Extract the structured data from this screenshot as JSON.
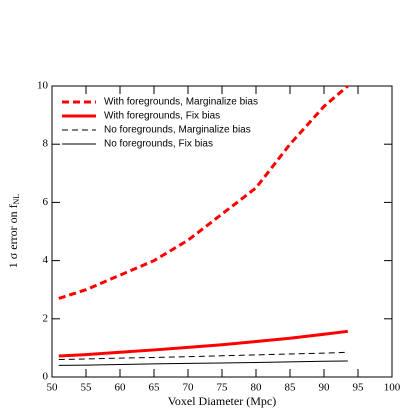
{
  "chart_data": {
    "type": "line",
    "x_label": "Voxel Diameter (Mpc)",
    "y_label": "1 σ error on f",
    "y_label_sub": "NL",
    "x": [
      51,
      55,
      60,
      65,
      70,
      75,
      80,
      85,
      90,
      93.5
    ],
    "series": [
      {
        "name": "With foregrounds, Marginalize bias",
        "color": "#ff0000",
        "dashed": true,
        "thick": true,
        "values": [
          2.7,
          3.0,
          3.5,
          4.0,
          4.7,
          5.6,
          6.5,
          8.0,
          9.3,
          10.0
        ]
      },
      {
        "name": "With foregrounds, Fix bias",
        "color": "#ff0000",
        "dashed": false,
        "thick": true,
        "values": [
          0.72,
          0.77,
          0.85,
          0.93,
          1.02,
          1.11,
          1.22,
          1.33,
          1.47,
          1.57
        ]
      },
      {
        "name": "No foregrounds, Marginalize bias",
        "color": "#000000",
        "dashed": true,
        "thick": false,
        "values": [
          0.6,
          0.62,
          0.65,
          0.67,
          0.7,
          0.73,
          0.76,
          0.79,
          0.82,
          0.85
        ]
      },
      {
        "name": "No foregrounds, Fix bias",
        "color": "#000000",
        "dashed": false,
        "thick": false,
        "values": [
          0.4,
          0.41,
          0.43,
          0.45,
          0.47,
          0.48,
          0.5,
          0.52,
          0.54,
          0.55
        ]
      }
    ],
    "xlim": [
      50,
      100
    ],
    "xticks": [
      50,
      55,
      60,
      65,
      70,
      75,
      80,
      85,
      90,
      95,
      100
    ],
    "ylim": [
      0,
      10
    ],
    "yticks": [
      0,
      2,
      4,
      6,
      8,
      10
    ],
    "legend": "top-left"
  }
}
